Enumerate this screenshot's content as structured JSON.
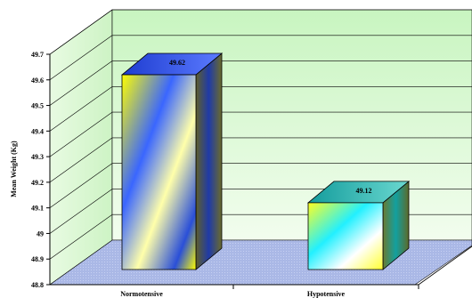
{
  "chart_data": {
    "type": "bar",
    "categories": [
      "Normotensive",
      "Hypotensive"
    ],
    "values": [
      49.62,
      49.12
    ],
    "data_labels": [
      "49.62",
      "49.12"
    ],
    "ylabel": "Mean Weight (Kg)",
    "xlabel": "",
    "ylim": [
      48.8,
      49.7
    ],
    "yticks": [
      "48.8",
      "48.9",
      "49",
      "49.1",
      "49.2",
      "49.3",
      "49.4",
      "49.5",
      "49.6",
      "49.7"
    ],
    "grid": true,
    "style": "3d",
    "colors": {
      "wall_top": "#c8f5c0",
      "wall_bottom": "#f2fdee",
      "floor": "#aab8e6",
      "bar1": [
        "#ffff00",
        "#3a66ff",
        "#ffffaa",
        "#2a4fd8"
      ],
      "bar2": [
        "#ffff30",
        "#22f0ff",
        "#ffffff"
      ]
    }
  }
}
